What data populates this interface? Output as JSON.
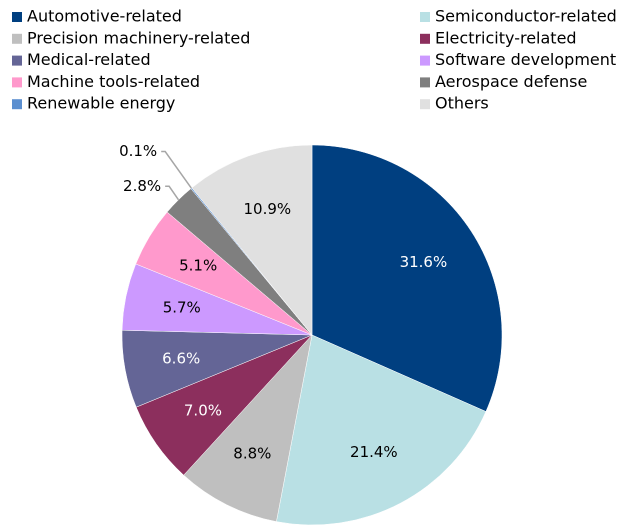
{
  "chart_data": {
    "type": "pie",
    "categories": [
      "Automotive-related",
      "Semiconductor-related",
      "Precision machinery-related",
      "Electricity-related",
      "Medical-related",
      "Software development",
      "Machine tools-related",
      "Aerospace defense",
      "Renewable energy",
      "Others"
    ],
    "values": [
      31.6,
      21.4,
      8.8,
      7.0,
      6.6,
      5.7,
      5.1,
      2.8,
      0.1,
      10.9
    ],
    "value_labels": [
      "31.6%",
      "21.4%",
      "8.8%",
      "7.0%",
      "6.6%",
      "5.7%",
      "5.1%",
      "2.8%",
      "0.1%",
      "10.9%"
    ],
    "colors": [
      "#003f80",
      "#b9e0e4",
      "#bfbfbf",
      "#8c2f5d",
      "#646596",
      "#cc99ff",
      "#ff99cc",
      "#7f7f7f",
      "#5b8fd0",
      "#e0e0e0"
    ],
    "legend": "top"
  }
}
